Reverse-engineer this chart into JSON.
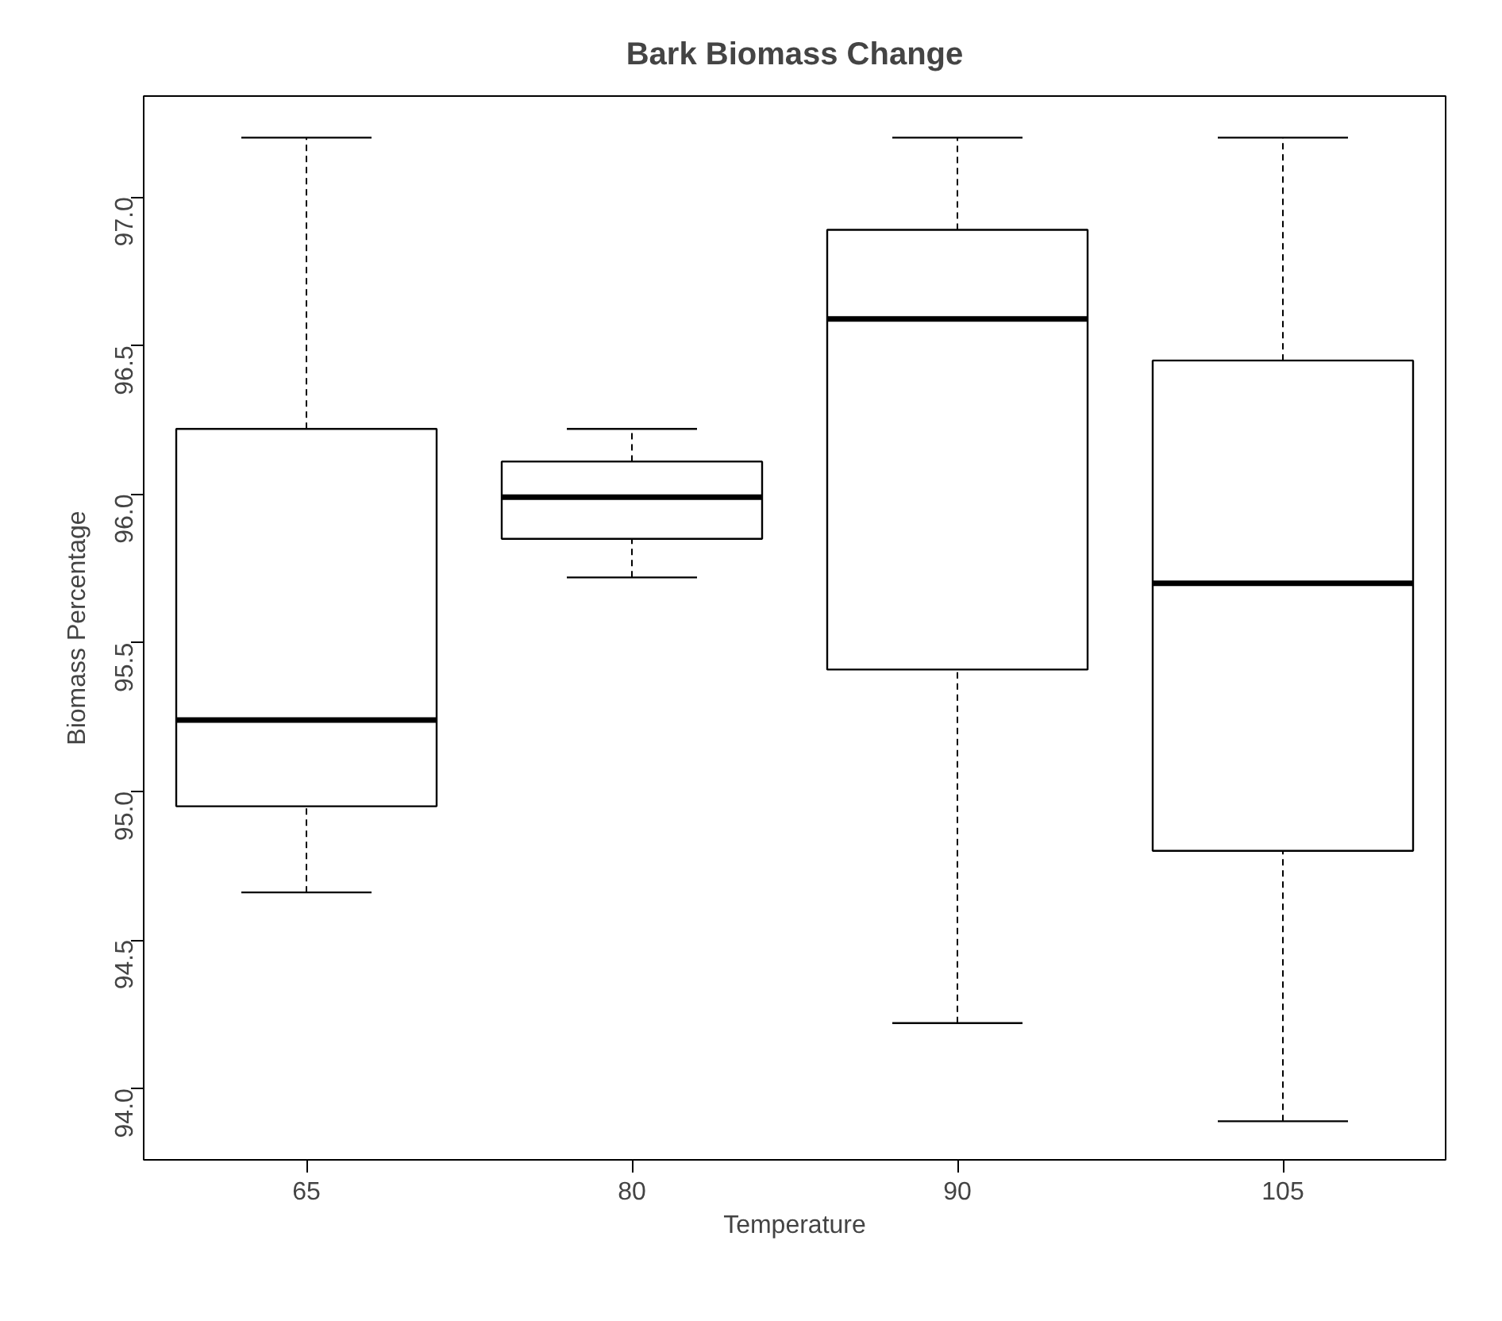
{
  "chart_data": {
    "type": "box",
    "title": "Bark Biomass Change",
    "xlabel": "Temperature",
    "ylabel": "Biomass Percentage",
    "categories": [
      "65",
      "80",
      "90",
      "105"
    ],
    "boxes": [
      {
        "low": 94.66,
        "q1": 94.95,
        "median": 95.24,
        "q3": 96.22,
        "high": 97.2
      },
      {
        "low": 95.72,
        "q1": 95.85,
        "median": 95.99,
        "q3": 96.11,
        "high": 96.22
      },
      {
        "low": 94.22,
        "q1": 95.41,
        "median": 96.59,
        "q3": 96.89,
        "high": 97.2
      },
      {
        "low": 93.89,
        "q1": 94.8,
        "median": 95.7,
        "q3": 96.45,
        "high": 97.2
      }
    ],
    "ylim": [
      93.76,
      97.34
    ],
    "yticks": [
      {
        "value": 94,
        "label": "94.0"
      },
      {
        "value": 94.5,
        "label": "94.5"
      },
      {
        "value": 95,
        "label": "95.0"
      },
      {
        "value": 95.5,
        "label": "95.5"
      },
      {
        "value": 96,
        "label": "96.0"
      },
      {
        "value": 96.5,
        "label": "96.5"
      },
      {
        "value": 97,
        "label": "97.0"
      }
    ],
    "grid": false
  }
}
